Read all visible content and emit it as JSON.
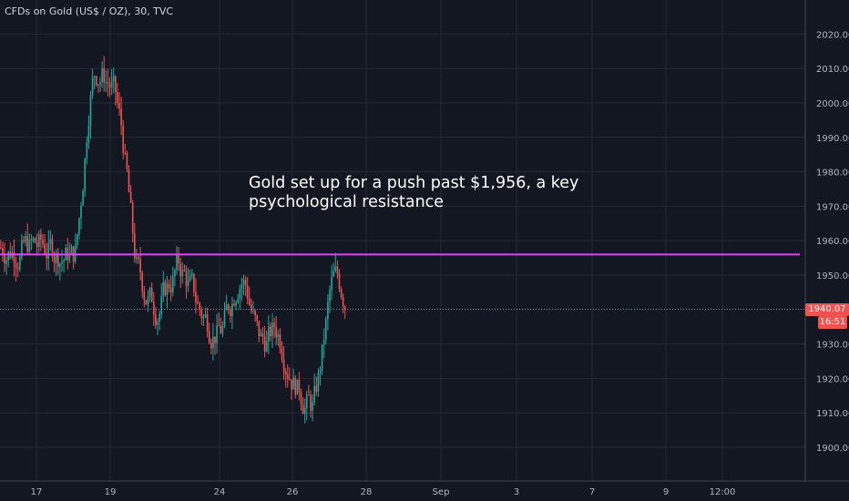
{
  "header": {
    "symbol_label": "CFDs on Gold (US$ / OZ), 30, TVC"
  },
  "annotation": {
    "line1": "Gold set up for a push past $1,956, a key",
    "line2": "psychological resistance"
  },
  "badges": {
    "last_price": "1940.07",
    "countdown": "16:51"
  },
  "colors": {
    "background": "#131722",
    "grid": "#232836",
    "up": "#26a69a",
    "down": "#ef5350",
    "resistance": "#e040fb",
    "axis_text": "#b2b5be"
  },
  "chart_data": {
    "type": "candlestick",
    "y_axis": {
      "position": "right",
      "ticks": [
        1900,
        1910,
        1920,
        1930,
        1940,
        1950,
        1960,
        1970,
        1980,
        1990,
        2000,
        2010,
        2020
      ]
    },
    "x_axis": {
      "ticks": [
        "17",
        "19",
        "24",
        "26",
        "28",
        "Sep",
        "3",
        "7",
        "9",
        "12:00"
      ]
    },
    "resistance_level": 1956,
    "last_price": 1940.07,
    "anchors": [
      [
        "17",
        1958
      ],
      [
        "18",
        1955
      ],
      [
        "18.4",
        2014
      ],
      [
        "19",
        2004
      ],
      [
        "19.5",
        1985
      ],
      [
        "20",
        1948
      ],
      [
        "21",
        1940
      ],
      [
        "22",
        1954
      ],
      [
        "23",
        1938
      ],
      [
        "24",
        1933
      ],
      [
        "24.5",
        1955
      ],
      [
        "25",
        1928
      ],
      [
        "25.5",
        1935
      ],
      [
        "26",
        1918
      ],
      [
        "26.5",
        1910
      ],
      [
        "27",
        1952
      ],
      [
        "27.5",
        1940
      ]
    ]
  }
}
